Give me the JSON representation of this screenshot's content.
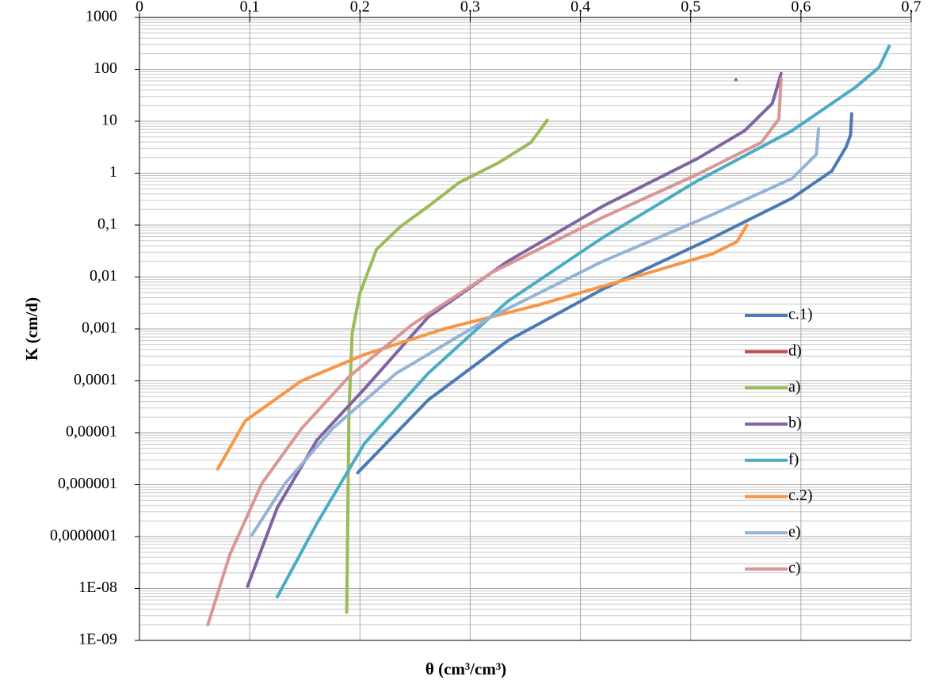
{
  "chart_data": {
    "type": "line",
    "x_label": "θ (cm³/cm³)",
    "y_label": "K (cm/d)",
    "xlim": [
      0,
      0.7
    ],
    "xticks": [
      0,
      {
        "value": 0.1,
        "label": "0,1"
      },
      {
        "value": 0.2,
        "label": "0,2"
      },
      {
        "value": 0.3,
        "label": "0,3"
      },
      {
        "value": 0.4,
        "label": "0,4"
      },
      {
        "value": 0.5,
        "label": "0,5"
      },
      {
        "value": 0.6,
        "label": "0,6"
      },
      {
        "value": 0.7,
        "label": "0,7"
      }
    ],
    "ylim": [
      1e-09,
      1000
    ],
    "log_y": true,
    "grid": true,
    "minor_grid": true,
    "legend": "right",
    "yticks": [
      1000,
      100,
      10,
      1,
      {
        "value": 0.1,
        "label": "0,1"
      },
      {
        "value": 0.01,
        "label": "0,01"
      },
      {
        "value": 0.001,
        "label": "0,001"
      },
      {
        "value": 0.0001,
        "label": "0,0001"
      },
      {
        "value": 1e-05,
        "label": "0,00001"
      },
      {
        "value": 1e-06,
        "label": "0,000001"
      },
      {
        "value": 1e-07,
        "label": "0,0000001"
      },
      {
        "value": 1e-08,
        "label": "1E-08"
      },
      {
        "value": 1e-09,
        "label": "1E-09"
      }
    ],
    "series": [
      {
        "name": "c.1)",
        "color": "#4a7ab5",
        "x": [
          0.198,
          0.262,
          0.334,
          0.42,
          0.52,
          0.592,
          0.628,
          0.641,
          0.645,
          0.646
        ],
        "values": [
          1.7e-06,
          4.3e-05,
          0.00059,
          0.0058,
          0.057,
          0.33,
          1.1,
          3.2,
          5.5,
          14
        ]
      },
      {
        "name": "d)",
        "color": "#c0504d",
        "x": [
          0.541
        ],
        "values": [
          63
        ]
      },
      {
        "name": "a)",
        "color": "#9bbb59",
        "x": [
          0.188,
          0.19,
          0.193,
          0.2,
          0.215,
          0.237,
          0.262,
          0.29,
          0.326,
          0.355,
          0.37
        ],
        "values": [
          3.5e-09,
          2.5e-05,
          0.00083,
          0.0049,
          0.034,
          0.095,
          0.23,
          0.66,
          1.6,
          3.9,
          10.5
        ]
      },
      {
        "name": "b)",
        "color": "#8064a2",
        "x": [
          0.098,
          0.125,
          0.161,
          0.204,
          0.262,
          0.334,
          0.42,
          0.506,
          0.549,
          0.574,
          0.582
        ],
        "values": [
          1.1e-08,
          3.6e-07,
          7.2e-06,
          7e-05,
          0.0017,
          0.02,
          0.23,
          1.9,
          6.6,
          22,
          83
        ]
      },
      {
        "name": "f)",
        "color": "#4bacc6",
        "x": [
          0.125,
          0.161,
          0.204,
          0.262,
          0.334,
          0.42,
          0.506,
          0.592,
          0.65,
          0.671,
          0.68
        ],
        "values": [
          6.9e-09,
          1.8e-07,
          6.2e-06,
          0.00014,
          0.0034,
          0.057,
          0.71,
          6.6,
          46,
          110,
          280
        ]
      },
      {
        "name": "c.2)",
        "color": "#f79646",
        "x": [
          0.071,
          0.096,
          0.147,
          0.204,
          0.276,
          0.362,
          0.449,
          0.52,
          0.542,
          0.551
        ],
        "values": [
          2e-06,
          1.7e-05,
          0.0001,
          0.00032,
          0.001,
          0.0029,
          0.01,
          0.028,
          0.048,
          0.1
        ]
      },
      {
        "name": "e)",
        "color": "#95b3d7",
        "x": [
          0.102,
          0.132,
          0.175,
          0.233,
          0.319,
          0.42,
          0.52,
          0.592,
          0.614,
          0.616
        ],
        "values": [
          1.07e-07,
          1.05e-06,
          1.2e-05,
          0.00014,
          0.0017,
          0.02,
          0.16,
          0.79,
          2.3,
          7.2
        ]
      },
      {
        "name": "c)",
        "color": "#d99694",
        "x": [
          0.062,
          0.082,
          0.111,
          0.147,
          0.19,
          0.247,
          0.319,
          0.42,
          0.506,
          0.564,
          0.58,
          0.582
        ],
        "values": [
          2e-09,
          4.5e-08,
          1.05e-06,
          1.2e-05,
          0.00012,
          0.0012,
          0.012,
          0.14,
          0.95,
          3.9,
          11,
          65
        ]
      }
    ]
  }
}
